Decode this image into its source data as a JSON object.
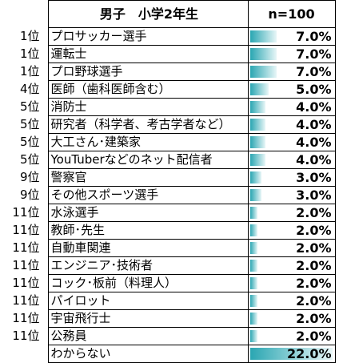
{
  "header": {
    "rank": "",
    "title": "男子　小学2年生",
    "n": "n=100"
  },
  "colors": {
    "bar": "#2aa6b2",
    "bar_light": "#e8f6f7"
  },
  "chart_data": {
    "type": "table",
    "title": "男子　小学2年生",
    "sample": "n=100",
    "xlim": [
      0,
      22
    ],
    "rows": [
      {
        "rank": "1位",
        "job": "プロサッカー選手",
        "value": 7.0,
        "label": "7.0%"
      },
      {
        "rank": "1位",
        "job": "運転士",
        "value": 7.0,
        "label": "7.0%"
      },
      {
        "rank": "1位",
        "job": "プロ野球選手",
        "value": 7.0,
        "label": "7.0%"
      },
      {
        "rank": "4位",
        "job": "医師（歯科医師含む）",
        "value": 5.0,
        "label": "5.0%"
      },
      {
        "rank": "5位",
        "job": "消防士",
        "value": 4.0,
        "label": "4.0%"
      },
      {
        "rank": "5位",
        "job": "研究者（科学者、考古学者など）",
        "value": 4.0,
        "label": "4.0%"
      },
      {
        "rank": "5位",
        "job": "大工さん･建築家",
        "value": 4.0,
        "label": "4.0%"
      },
      {
        "rank": "5位",
        "job": "YouTuberなどのネット配信者",
        "value": 4.0,
        "label": "4.0%"
      },
      {
        "rank": "9位",
        "job": "警察官",
        "value": 3.0,
        "label": "3.0%"
      },
      {
        "rank": "9位",
        "job": "その他スポーツ選手",
        "value": 3.0,
        "label": "3.0%"
      },
      {
        "rank": "11位",
        "job": "水泳選手",
        "value": 2.0,
        "label": "2.0%"
      },
      {
        "rank": "11位",
        "job": "教師･先生",
        "value": 2.0,
        "label": "2.0%"
      },
      {
        "rank": "11位",
        "job": "自動車関連",
        "value": 2.0,
        "label": "2.0%"
      },
      {
        "rank": "11位",
        "job": "エンジニア･技術者",
        "value": 2.0,
        "label": "2.0%"
      },
      {
        "rank": "11位",
        "job": "コック･板前（料理人）",
        "value": 2.0,
        "label": "2.0%"
      },
      {
        "rank": "11位",
        "job": "パイロット",
        "value": 2.0,
        "label": "2.0%"
      },
      {
        "rank": "11位",
        "job": "宇宙飛行士",
        "value": 2.0,
        "label": "2.0%"
      },
      {
        "rank": "11位",
        "job": "公務員",
        "value": 2.0,
        "label": "2.0%"
      },
      {
        "rank": "",
        "job": "わからない",
        "value": 22.0,
        "label": "22.0%"
      }
    ]
  }
}
